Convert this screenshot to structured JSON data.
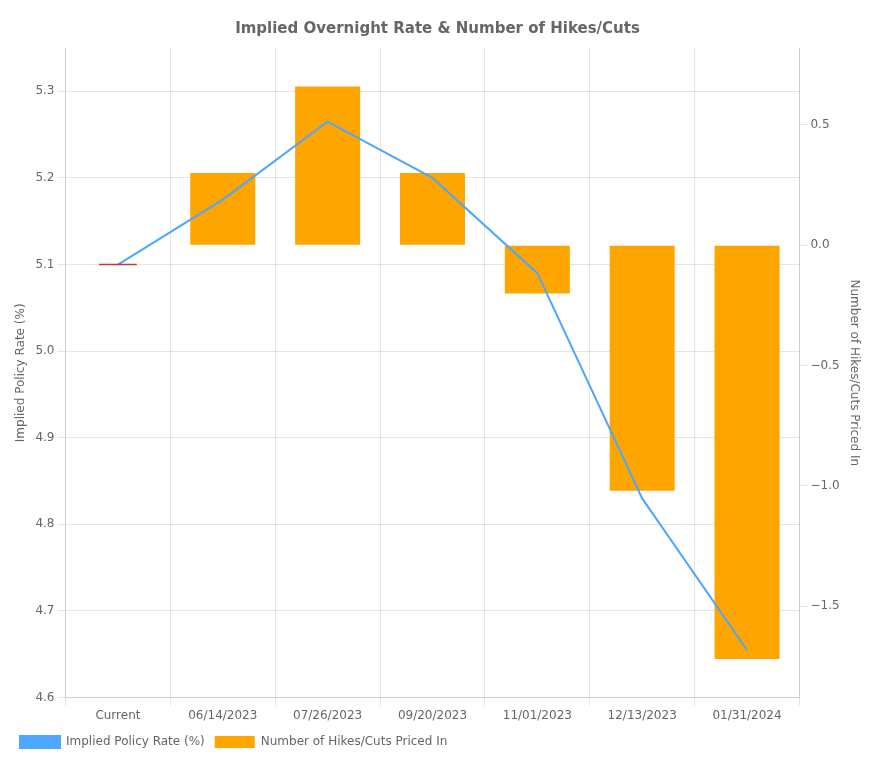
{
  "chart_data": {
    "type": "bar",
    "title": "Implied Overnight Rate & Number of Hikes/Cuts",
    "categories": [
      "Current",
      "06/14/2023",
      "07/26/2023",
      "09/20/2023",
      "11/01/2023",
      "12/13/2023",
      "01/31/2024"
    ],
    "series": [
      {
        "name": "Implied Policy Rate (%)",
        "type": "line",
        "color": "#4da6ff",
        "values": [
          5.1,
          5.175,
          5.265,
          5.2,
          5.09,
          4.83,
          4.655
        ]
      },
      {
        "name": "Number of Hikes/Cuts Priced In",
        "type": "bar",
        "color": "#FFA500",
        "axis": "y2",
        "values": [
          0.0,
          0.3,
          0.66,
          0.3,
          -0.2,
          -1.02,
          -1.72
        ]
      }
    ],
    "ylabel": "Implied Policy Rate (%)",
    "y2label": "Number of Hikes/Cuts Priced In",
    "ylim": [
      4.6,
      5.35
    ],
    "yticks": [
      4.6,
      4.7,
      4.8,
      4.9,
      {
        "value": 5.0,
        "label": "5.0"
      },
      5.1,
      5.2,
      5.3
    ],
    "y2lim": [
      -1.88,
      0.82
    ],
    "y2ticks": [
      {
        "value": -1.5,
        "label": "−1.5"
      },
      {
        "value": -1.0,
        "label": "−1.0"
      },
      {
        "value": -0.5,
        "label": "−0.5"
      },
      {
        "value": 0.0,
        "label": "0.0"
      },
      0.5
    ],
    "grid": true,
    "legend": "lower left",
    "markers": [
      {
        "category": "Current",
        "value": 5.1,
        "color": "#cc3333"
      }
    ]
  }
}
